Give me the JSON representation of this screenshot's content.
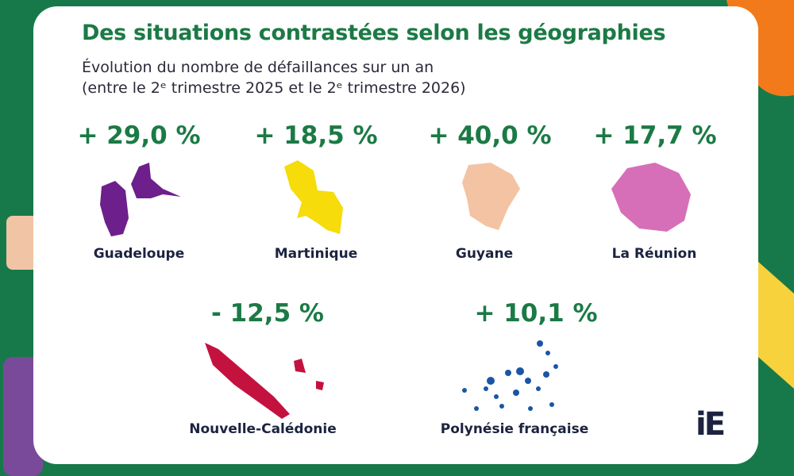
{
  "header": {
    "title": "Des situations contrastées selon les géographies",
    "subtitle": [
      "Évolution du nombre de défaillances sur un an",
      "(entre le 2ᵉ trimestre 2025 et le 2ᵉ trimestre 2026)"
    ]
  },
  "regions": [
    {
      "change": "+ 29,0 %",
      "name": "Guadeloupe"
    },
    {
      "change": "+ 18,5 %",
      "name": "Martinique"
    },
    {
      "change": "+ 40,0 %",
      "name": "Guyane"
    },
    {
      "change": "+ 17,7 %",
      "name": "La Réunion"
    },
    {
      "change": "- 12,5 %",
      "name": "Nouvelle-Calédonie"
    },
    {
      "change": "+ 10,1 %",
      "name": "Polynésie française"
    }
  ],
  "logo": "iE"
}
